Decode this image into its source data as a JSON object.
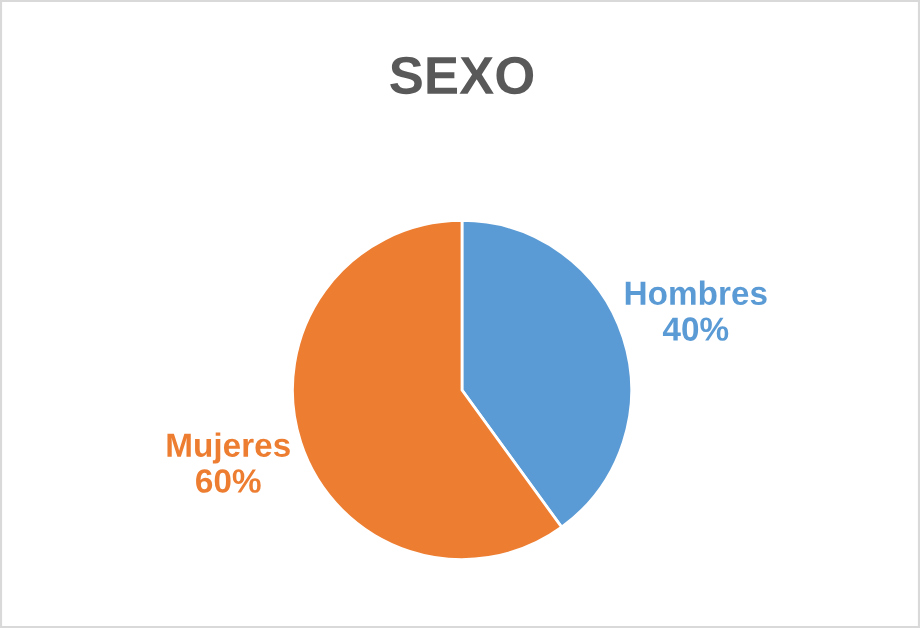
{
  "chart_data": {
    "type": "pie",
    "title": "SEXO",
    "categories": [
      "Hombres",
      "Mujeres"
    ],
    "values": [
      40,
      60
    ],
    "value_labels": [
      "40%",
      "60%"
    ],
    "colors": [
      "#5b9bd5",
      "#ed7d31"
    ],
    "legend": false
  }
}
